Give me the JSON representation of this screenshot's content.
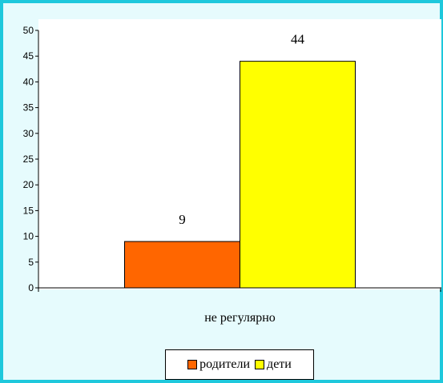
{
  "chart_data": {
    "type": "bar",
    "categories": [
      "не регулярно"
    ],
    "series": [
      {
        "name": "родители",
        "values": [
          9
        ],
        "color": "#ff6600"
      },
      {
        "name": "дети",
        "values": [
          44
        ],
        "color": "#ffff00"
      }
    ],
    "ylim": [
      0,
      50
    ],
    "yticks": [
      0,
      5,
      10,
      15,
      20,
      25,
      30,
      35,
      40,
      45,
      50
    ],
    "grid": false,
    "legend_position": "bottom"
  },
  "colors": {
    "frame_border": "#1ec8dc",
    "frame_background": "#e6fbfd",
    "plot_background": "#ffffff"
  }
}
